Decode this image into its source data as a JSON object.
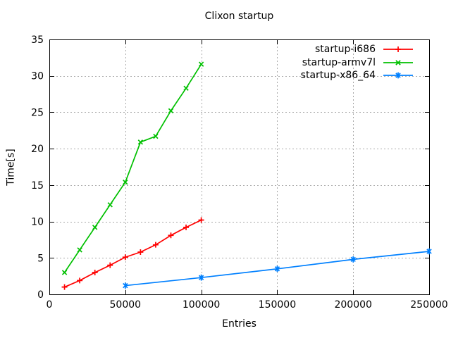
{
  "chart_data": {
    "type": "line",
    "title": "Clixon startup",
    "xlabel": "Entries",
    "ylabel": "Time[s]",
    "xlim": [
      0,
      250000
    ],
    "ylim": [
      0,
      35
    ],
    "xticks": [
      0,
      50000,
      100000,
      150000,
      200000,
      250000
    ],
    "yticks": [
      0,
      5,
      10,
      15,
      20,
      25,
      30,
      35
    ],
    "grid": true,
    "legend_position": "top-right-inside",
    "colors": {
      "background": "#ffffff",
      "axis": "#000000",
      "grid": "#aaaaaa"
    },
    "series": [
      {
        "name": "startup-i686",
        "color": "#ff0000",
        "marker": "plus",
        "x": [
          10000,
          20000,
          30000,
          40000,
          50000,
          60000,
          70000,
          80000,
          90000,
          100000
        ],
        "y": [
          1.0,
          1.9,
          3.0,
          4.0,
          5.1,
          5.8,
          6.8,
          8.1,
          9.2,
          10.2
        ]
      },
      {
        "name": "startup-armv7l",
        "color": "#00c000",
        "marker": "cross",
        "x": [
          10000,
          20000,
          30000,
          40000,
          50000,
          60000,
          70000,
          80000,
          90000,
          100000
        ],
        "y": [
          3.0,
          6.1,
          9.2,
          12.3,
          15.4,
          20.9,
          21.7,
          25.2,
          28.3,
          31.6
        ]
      },
      {
        "name": "startup-x86_64",
        "color": "#0080ff",
        "marker": "asterisk",
        "x": [
          50000,
          100000,
          150000,
          200000,
          250000
        ],
        "y": [
          1.2,
          2.3,
          3.5,
          4.8,
          5.9
        ]
      }
    ]
  }
}
